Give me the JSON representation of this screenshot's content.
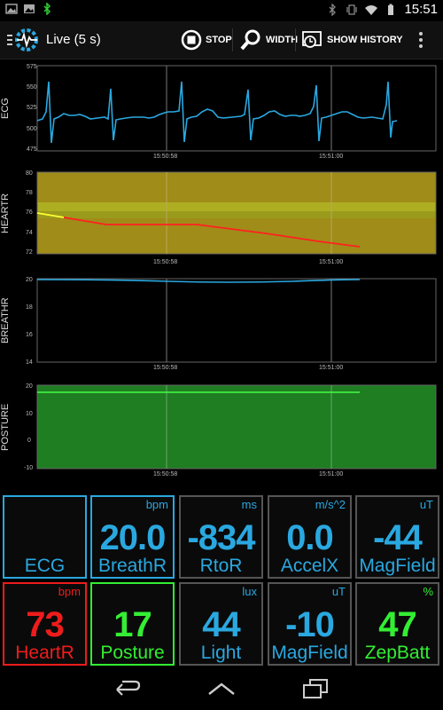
{
  "status": {
    "time": "15:51"
  },
  "actionbar": {
    "title": "Live (5 s)",
    "stop_label": "STOP",
    "width_label": "WIDTH",
    "history_label": "SHOW HISTORY"
  },
  "charts": [
    {
      "ylabel": "ECG",
      "yticks": [
        "575",
        "550",
        "525",
        "500",
        "475"
      ],
      "xticks": [
        "15:50:58",
        "15:51:00"
      ]
    },
    {
      "ylabel": "HEARTR",
      "yticks": [
        "80",
        "78",
        "76",
        "74",
        "72"
      ],
      "xticks": [
        "15:50:58",
        "15:51:00"
      ]
    },
    {
      "ylabel": "BREATHR",
      "yticks": [
        "20",
        "18",
        "16",
        "14"
      ],
      "xticks": [
        "15:50:58",
        "15:51:00"
      ]
    },
    {
      "ylabel": "POSTURE",
      "yticks": [
        "20",
        "10",
        "0",
        "-10"
      ],
      "xticks": [
        "15:50:58",
        "15:51:00"
      ]
    }
  ],
  "colors": {
    "ecg": "#2aa8e0",
    "heart_ok": "#ffff33",
    "heart_alert": "#ff2020",
    "breath": "#2aa8e0",
    "posture": "#33ee33"
  },
  "tiles": [
    {
      "value": "",
      "unit": "",
      "label": "ECG",
      "color": "#2aa8e0",
      "border": "#2aa8e0"
    },
    {
      "value": "20.0",
      "unit": "bpm",
      "label": "BreathR",
      "color": "#2aa8e0",
      "border": "#2aa8e0"
    },
    {
      "value": "-834",
      "unit": "ms",
      "label": "RtoR",
      "color": "#2aa8e0",
      "border": "#555555"
    },
    {
      "value": "0.0",
      "unit": "m/s^2",
      "label": "AccelX",
      "color": "#2aa8e0",
      "border": "#555555"
    },
    {
      "value": "-44",
      "unit": "uT",
      "label": "MagField",
      "color": "#2aa8e0",
      "border": "#555555"
    },
    {
      "value": "73",
      "unit": "bpm",
      "label": "HeartR",
      "color": "#ee1c1c",
      "border": "#ee1c1c"
    },
    {
      "value": "17",
      "unit": "",
      "label": "Posture",
      "color": "#33ee33",
      "border": "#33ee33"
    },
    {
      "value": "44",
      "unit": "lux",
      "label": "Light",
      "color": "#2aa8e0",
      "border": "#555555"
    },
    {
      "value": "-10",
      "unit": "uT",
      "label": "MagField",
      "color": "#2aa8e0",
      "border": "#555555"
    },
    {
      "value": "47",
      "unit": "%",
      "label": "ZepBatt",
      "color": "#33ee33",
      "border": "#555555"
    }
  ]
}
